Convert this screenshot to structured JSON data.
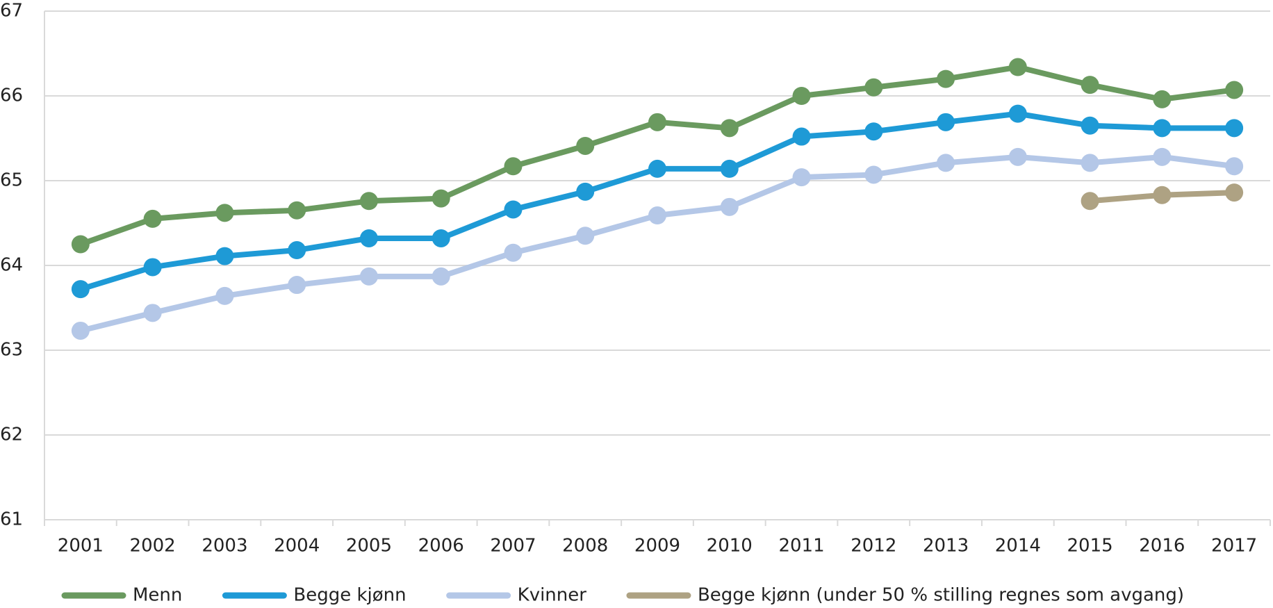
{
  "chart_data": {
    "type": "line",
    "categories": [
      "2001",
      "2002",
      "2003",
      "2004",
      "2005",
      "2006",
      "2007",
      "2008",
      "2009",
      "2010",
      "2011",
      "2012",
      "2013",
      "2014",
      "2015",
      "2016",
      "2017"
    ],
    "series": [
      {
        "name": "Menn",
        "color": "#6a9a5f",
        "values": [
          64.25,
          64.55,
          64.62,
          64.65,
          64.76,
          64.79,
          65.17,
          65.41,
          65.69,
          65.62,
          66.0,
          66.1,
          66.2,
          66.34,
          66.13,
          65.96,
          66.07
        ]
      },
      {
        "name": "Begge kjønn",
        "color": "#1e9ad6",
        "values": [
          63.72,
          63.98,
          64.11,
          64.18,
          64.32,
          64.32,
          64.66,
          64.87,
          65.14,
          65.14,
          65.52,
          65.58,
          65.69,
          65.79,
          65.65,
          65.62,
          65.62
        ]
      },
      {
        "name": "Kvinner",
        "color": "#b4c7e7",
        "values": [
          63.23,
          63.44,
          63.64,
          63.77,
          63.87,
          63.87,
          64.15,
          64.35,
          64.59,
          64.69,
          65.04,
          65.07,
          65.21,
          65.28,
          65.21,
          65.28,
          65.17
        ]
      },
      {
        "name": "Begge kjønn (under 50 % stilling regnes som avgang)",
        "color": "#aea283",
        "values": [
          null,
          null,
          null,
          null,
          null,
          null,
          null,
          null,
          null,
          null,
          null,
          null,
          null,
          null,
          64.76,
          64.83,
          64.86
        ]
      }
    ],
    "ylim": [
      61,
      67
    ],
    "yticks": [
      61,
      62,
      63,
      64,
      65,
      66,
      67
    ],
    "grid": true,
    "legend": "bottom"
  }
}
